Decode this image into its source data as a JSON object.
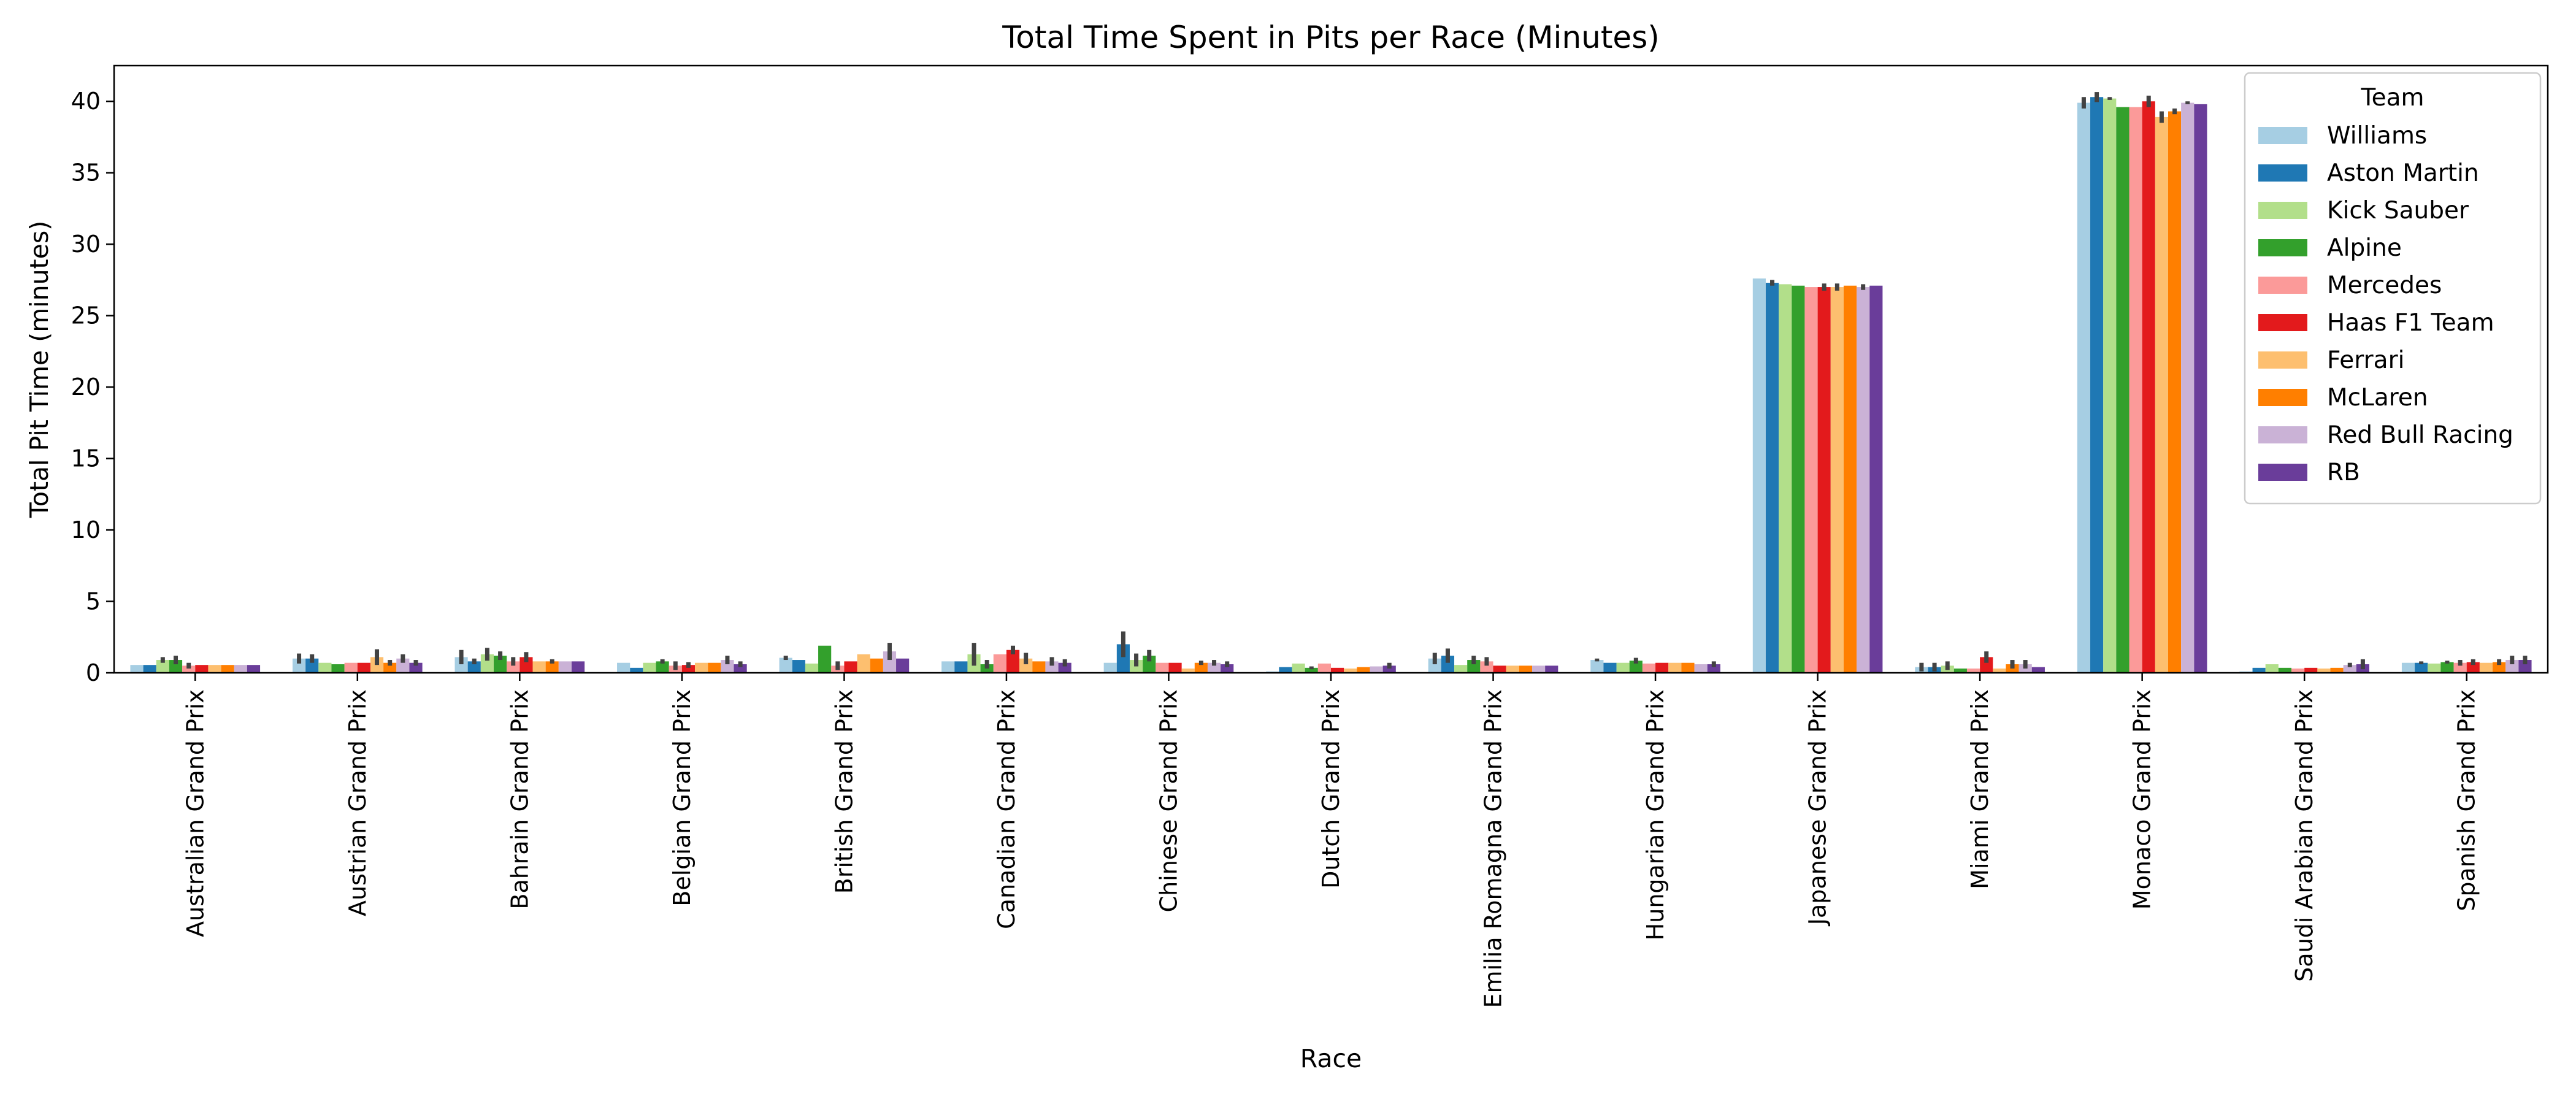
{
  "chart_data": {
    "type": "bar",
    "title": "Total Time Spent in Pits per Race (Minutes)",
    "xlabel": "Race",
    "ylabel": "Total Pit Time (minutes)",
    "ylim": [
      0,
      42.5
    ],
    "yticks": [
      0,
      5,
      10,
      15,
      20,
      25,
      30,
      35,
      40
    ],
    "grid": false,
    "error_bars": true,
    "legend": {
      "title": "Team",
      "placement": "top-right"
    },
    "categories": [
      "Australian Grand Prix",
      "Austrian Grand Prix",
      "Bahrain Grand Prix",
      "Belgian Grand Prix",
      "British Grand Prix",
      "Canadian Grand Prix",
      "Chinese Grand Prix",
      "Dutch Grand Prix",
      "Emilia Romagna Grand Prix",
      "Hungarian Grand Prix",
      "Japanese Grand Prix",
      "Miami Grand Prix",
      "Monaco Grand Prix",
      "Saudi Arabian Grand Prix",
      "Spanish Grand Prix"
    ],
    "series": [
      {
        "name": "Williams",
        "color": "#a6cee3",
        "values": [
          0.55,
          1.0,
          1.1,
          0.7,
          1.05,
          0.8,
          0.7,
          0.1,
          1.0,
          0.9,
          27.6,
          0.4,
          39.9,
          0.1,
          0.7
        ],
        "errors": [
          0.0,
          0.35,
          0.5,
          0.0,
          0.15,
          0.0,
          0.0,
          0.0,
          0.4,
          0.1,
          0.0,
          0.3,
          0.4,
          0.0,
          0.0
        ]
      },
      {
        "name": "Aston Martin",
        "color": "#1f78b4",
        "values": [
          0.55,
          1.0,
          0.8,
          0.35,
          0.9,
          0.8,
          2.0,
          0.4,
          1.2,
          0.7,
          27.3,
          0.4,
          40.3,
          0.35,
          0.7
        ],
        "errors": [
          0.0,
          0.3,
          0.2,
          0.0,
          0.0,
          0.0,
          0.9,
          0.0,
          0.5,
          0.0,
          0.2,
          0.3,
          0.35,
          0.0,
          0.1
        ]
      },
      {
        "name": "Kick Sauber",
        "color": "#b2df8a",
        "values": [
          0.9,
          0.7,
          1.3,
          0.7,
          0.65,
          1.3,
          0.9,
          0.65,
          0.55,
          0.7,
          27.2,
          0.5,
          40.2,
          0.6,
          0.65
        ],
        "errors": [
          0.2,
          0.0,
          0.45,
          0.0,
          0.0,
          0.8,
          0.45,
          0.0,
          0.0,
          0.0,
          0.0,
          0.3,
          0.1,
          0.0,
          0.0
        ]
      },
      {
        "name": "Alpine",
        "color": "#33a02c",
        "values": [
          0.9,
          0.6,
          1.2,
          0.8,
          1.9,
          0.6,
          1.2,
          0.35,
          0.9,
          0.85,
          27.1,
          0.3,
          39.6,
          0.35,
          0.75
        ],
        "errors": [
          0.3,
          0.0,
          0.3,
          0.15,
          0.0,
          0.3,
          0.4,
          0.1,
          0.3,
          0.2,
          0.0,
          0.0,
          0.0,
          0.0,
          0.1
        ]
      },
      {
        "name": "Mercedes",
        "color": "#fb9a99",
        "values": [
          0.5,
          0.7,
          0.8,
          0.5,
          0.5,
          1.3,
          0.7,
          0.65,
          0.8,
          0.65,
          27.0,
          0.3,
          39.6,
          0.3,
          0.7
        ],
        "errors": [
          0.2,
          0.0,
          0.3,
          0.3,
          0.3,
          0.0,
          0.0,
          0.0,
          0.3,
          0.0,
          0.0,
          0.0,
          0.0,
          0.0,
          0.2
        ]
      },
      {
        "name": "Haas F1 Team",
        "color": "#e31a1c",
        "values": [
          0.55,
          0.7,
          1.1,
          0.55,
          0.8,
          1.6,
          0.7,
          0.35,
          0.5,
          0.7,
          27.0,
          1.1,
          40.0,
          0.35,
          0.75
        ],
        "errors": [
          0.0,
          0.0,
          0.35,
          0.2,
          0.0,
          0.3,
          0.0,
          0.0,
          0.0,
          0.0,
          0.25,
          0.4,
          0.4,
          0.0,
          0.2
        ]
      },
      {
        "name": "Ferrari",
        "color": "#fdbf6f",
        "values": [
          0.55,
          1.1,
          0.8,
          0.7,
          1.3,
          1.0,
          0.3,
          0.3,
          0.5,
          0.7,
          27.0,
          0.3,
          38.9,
          0.3,
          0.7
        ],
        "errors": [
          0.0,
          0.55,
          0.0,
          0.0,
          0.0,
          0.4,
          0.0,
          0.0,
          0.0,
          0.0,
          0.25,
          0.0,
          0.4,
          0.0,
          0.0
        ]
      },
      {
        "name": "McLaren",
        "color": "#ff7f00",
        "values": [
          0.55,
          0.7,
          0.8,
          0.7,
          1.0,
          0.8,
          0.7,
          0.4,
          0.5,
          0.7,
          27.1,
          0.6,
          39.3,
          0.35,
          0.75
        ],
        "errors": [
          0.0,
          0.2,
          0.15,
          0.0,
          0.0,
          0.0,
          0.15,
          0.0,
          0.0,
          0.0,
          0.0,
          0.3,
          0.2,
          0.0,
          0.2
        ]
      },
      {
        "name": "Red Bull Racing",
        "color": "#cab2d6",
        "values": [
          0.55,
          1.0,
          0.8,
          0.9,
          1.5,
          0.8,
          0.7,
          0.45,
          0.5,
          0.6,
          27.0,
          0.6,
          39.9,
          0.55,
          0.9
        ],
        "errors": [
          0.0,
          0.3,
          0.0,
          0.3,
          0.6,
          0.3,
          0.2,
          0.0,
          0.0,
          0.0,
          0.2,
          0.3,
          0.1,
          0.15,
          0.3
        ]
      },
      {
        "name": "RB",
        "color": "#6a3d9a",
        "values": [
          0.55,
          0.7,
          0.8,
          0.6,
          1.0,
          0.7,
          0.6,
          0.5,
          0.5,
          0.6,
          27.1,
          0.4,
          39.8,
          0.6,
          0.9
        ],
        "errors": [
          0.0,
          0.2,
          0.0,
          0.2,
          0.0,
          0.25,
          0.2,
          0.2,
          0.0,
          0.2,
          0.0,
          0.0,
          0.0,
          0.35,
          0.3
        ]
      }
    ]
  }
}
